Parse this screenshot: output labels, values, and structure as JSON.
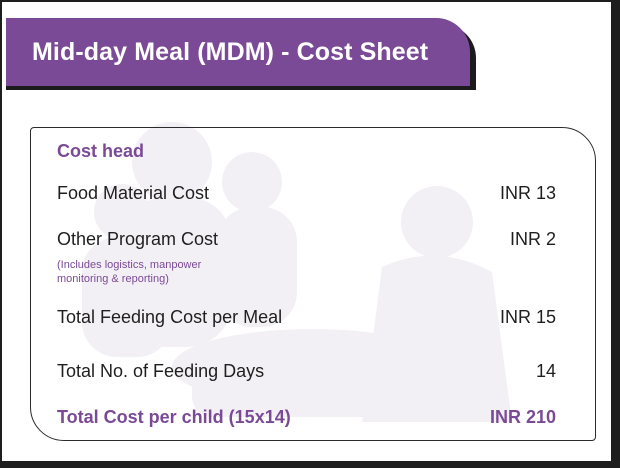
{
  "header": {
    "title": "Mid-day Meal (MDM) - Cost Sheet"
  },
  "sheet": {
    "heading": "Cost head",
    "rows": [
      {
        "label": "Food Material Cost",
        "value": "INR 13"
      },
      {
        "label": "Other Program Cost",
        "value": "INR 2"
      },
      {
        "label": "Total Feeding Cost per Meal",
        "value": "INR 15"
      },
      {
        "label": "Total No. of Feeding Days",
        "value": "14"
      }
    ],
    "note_line1": "(Includes logistics, manpower",
    "note_line2": "monitoring & reporting)",
    "total": {
      "label": "Total Cost per child (15x14)",
      "value": "INR 210"
    }
  },
  "colors": {
    "accent": "#7b4a96",
    "text": "#1f1f1f",
    "frame": "#1e1e1e"
  }
}
